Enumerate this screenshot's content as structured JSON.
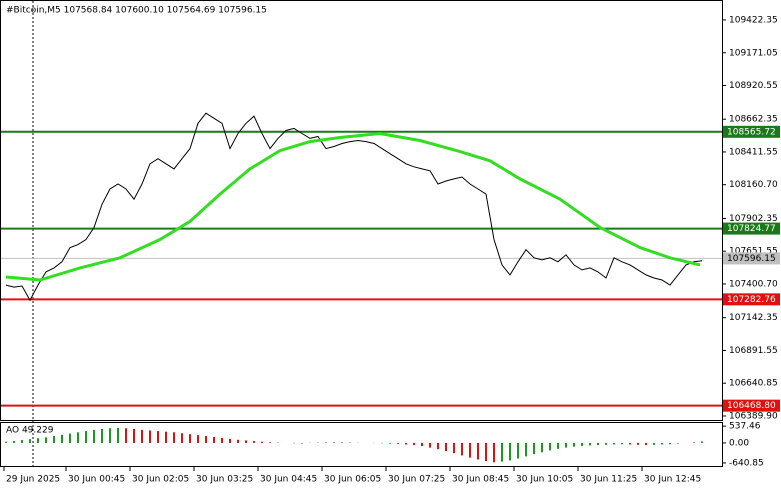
{
  "chart_data": {
    "type": "line",
    "title": "#Bitcoin,M5 107568.84 107600.10 107564.69 107596.15",
    "xlim": [
      -0.75,
      89.5
    ],
    "xticks": [
      {
        "value": -0.25,
        "label": "29 Jun 2025"
      },
      {
        "value": 7.5,
        "label": "30 Jun 00:45"
      },
      {
        "value": 15.5,
        "label": "30 Jun 02:05"
      },
      {
        "value": 23.5,
        "label": "30 Jun 03:25"
      },
      {
        "value": 31.5,
        "label": "30 Jun 04:45"
      },
      {
        "value": 39.5,
        "label": "30 Jun 06:05"
      },
      {
        "value": 47.5,
        "label": "30 Jun 07:25"
      },
      {
        "value": 55.5,
        "label": "30 Jun 08:45"
      },
      {
        "value": 63.5,
        "label": "30 Jun 10:05"
      },
      {
        "value": 71.5,
        "label": "30 Jun 11:25"
      },
      {
        "value": 79.5,
        "label": "30 Jun 12:45"
      }
    ],
    "ylim": [
      106359,
      109575
    ],
    "yticks": [
      109422.35,
      109171.05,
      108920.55,
      108662.35,
      108411.55,
      {
        "value": 108160.7,
        "label": "108160.70"
      },
      107902.35,
      107651.55,
      {
        "value": 107400.7,
        "label": "107400.70"
      },
      107142.35,
      106891.55,
      106640.85,
      {
        "value": 106389.9,
        "label": "106389.90"
      }
    ],
    "series": [
      {
        "color": "#000000",
        "values": [
          107392,
          107377,
          107385,
          107276,
          107392,
          107493,
          107524,
          107570,
          107679,
          107702,
          107741,
          107833,
          108011,
          108128,
          108166,
          108128,
          108050,
          108166,
          108321,
          108360,
          108321,
          108282,
          108360,
          108437,
          108631,
          108708,
          108669,
          108631,
          108437,
          108553,
          108631,
          108685,
          108553,
          108437,
          108515,
          108576,
          108592,
          108553,
          108515,
          108530,
          108437,
          108453,
          108476,
          108491,
          108499,
          108491,
          108476,
          108437,
          108398,
          108360,
          108321,
          108298,
          108282,
          108267,
          108166,
          108189,
          108205,
          108220,
          108166,
          108128,
          108089,
          107741,
          107547,
          107470,
          107570,
          107663,
          107601,
          107586,
          107601,
          107570,
          107624,
          107547,
          107508,
          107524,
          107493,
          107446,
          107601,
          107570,
          107547,
          107508,
          107470,
          107446,
          107431,
          107392,
          107470,
          107547,
          107570,
          107578
        ]
      },
      {
        "color": "#33dd22",
        "x": [
          0,
          4.25,
          9.25,
          14.25,
          19.25,
          23,
          26.75,
          30.5,
          34.25,
          38,
          41.75,
          46.75,
          51.75,
          56.75,
          60.5,
          64.25,
          69.25,
          74.25,
          79.25,
          83,
          86.75
        ],
        "values": [
          107454,
          107431,
          107524,
          107601,
          107741,
          107880,
          108089,
          108282,
          108422,
          108491,
          108522,
          108553,
          108499,
          108414,
          108344,
          108205,
          108050,
          107833,
          107679,
          107601,
          107547
        ]
      }
    ],
    "levels": [
      {
        "value": 108565.72,
        "color": "#1a7a1a"
      },
      {
        "value": 107824.77,
        "color": "#1a7a1a"
      },
      {
        "value": 107596.15,
        "color": "#c0c0c0"
      },
      {
        "value": 107282.76,
        "color": "#e01010"
      },
      {
        "value": 106468.8,
        "label": "106468.80",
        "color": "#e01010"
      }
    ],
    "ao": {
      "title": "AO 49.229",
      "ylim": [
        -739,
        638
      ],
      "yticks": [
        537.46,
        {
          "value": 0,
          "label": "0.00"
        },
        -640.85
      ],
      "up_color": "#1a9a1a",
      "down_color": "#e01010",
      "values": [
        40,
        60,
        90,
        120,
        150,
        180,
        220,
        260,
        300,
        340,
        380,
        420,
        450,
        470,
        480,
        470,
        450,
        420,
        400,
        380,
        360,
        340,
        310,
        280,
        250,
        220,
        190,
        160,
        130,
        100,
        80,
        60,
        40,
        20,
        10,
        0,
        -10,
        -15,
        5,
        10,
        15,
        20,
        15,
        10,
        5,
        0,
        -5,
        -10,
        -20,
        -30,
        -50,
        -70,
        -100,
        -150,
        -200,
        -260,
        -330,
        -400,
        -470,
        -530,
        -580,
        -620,
        -600,
        -560,
        -500,
        -430,
        -360,
        -300,
        -240,
        -190,
        -150,
        -120,
        -100,
        -80,
        -70,
        -60,
        -50,
        -40,
        -50,
        -60,
        -70,
        -60,
        -50,
        -40,
        -20,
        0,
        20,
        49.229
      ]
    }
  }
}
